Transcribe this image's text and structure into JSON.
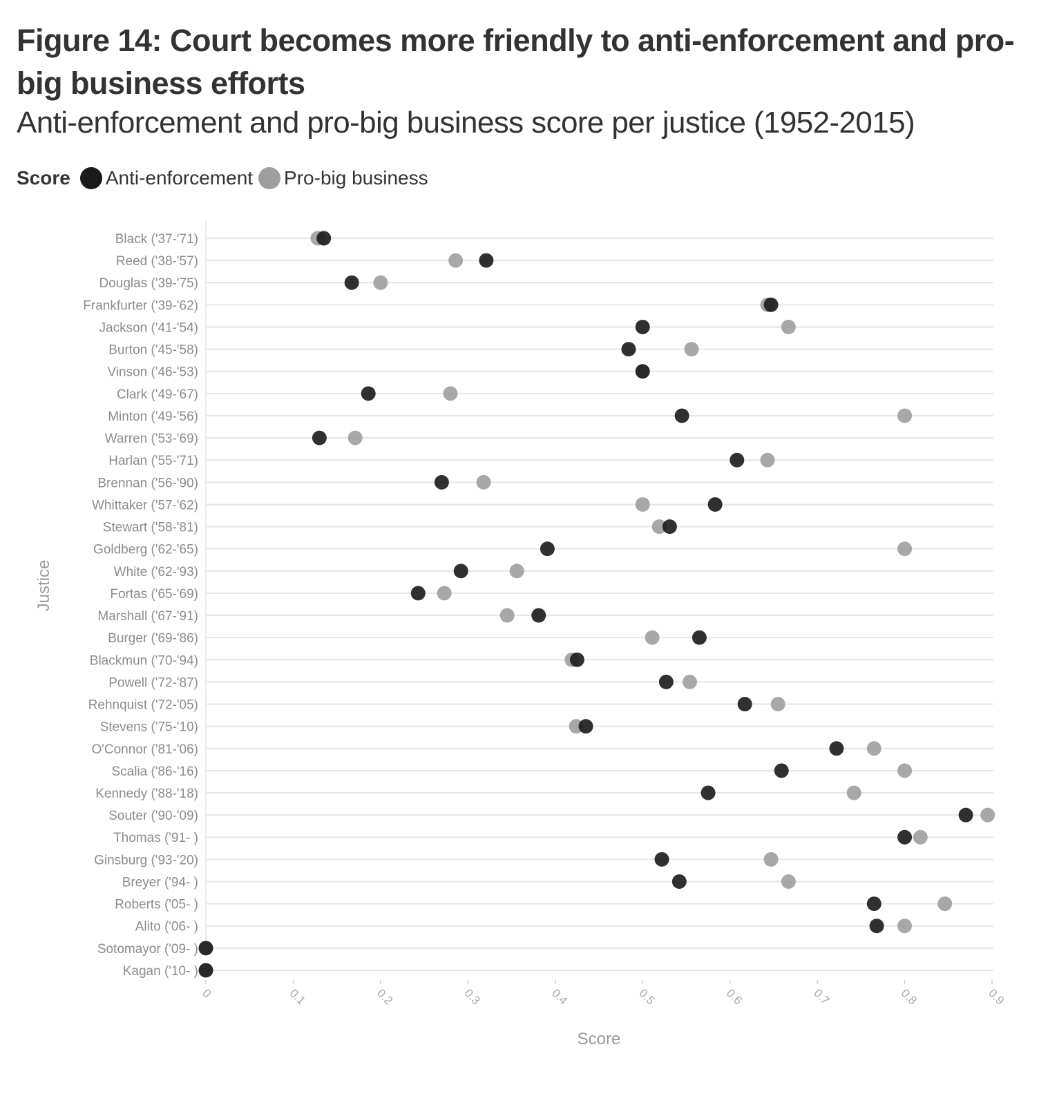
{
  "title": "Figure 14: Court becomes more friendly to anti-enforcement and pro-big business efforts",
  "subtitle": "Anti-enforcement and pro-big business score per justice (1952-2015)",
  "legend": {
    "title": "Score",
    "items": [
      {
        "label": "Anti-enforcement",
        "color": "#1a1a1a"
      },
      {
        "label": "Pro-big business",
        "color": "#9e9e9e"
      }
    ]
  },
  "chart_data": {
    "type": "scatter",
    "title": "Figure 14: Court becomes more friendly to anti-enforcement and pro-big business efforts",
    "subtitle": "Anti-enforcement and pro-big business score per justice (1952-2015)",
    "xlabel": "Score",
    "ylabel": "Justice",
    "xlim": [
      0,
      0.9
    ],
    "xticks": [
      "0",
      "0.1",
      "0.2",
      "0.3",
      "0.4",
      "0.5",
      "0.6",
      "0.7",
      "0.8",
      "0.9"
    ],
    "grid": "horizontal",
    "legend_position": "top-left",
    "categories": [
      "Black ('37-'71)",
      "Reed ('38-'57)",
      "Douglas ('39-'75)",
      "Frankfurter ('39-'62)",
      "Jackson ('41-'54)",
      "Burton ('45-'58)",
      "Vinson ('46-'53)",
      "Clark ('49-'67)",
      "Minton ('49-'56)",
      "Warren ('53-'69)",
      "Harlan ('55-'71)",
      "Brennan ('56-'90)",
      "Whittaker ('57-'62)",
      "Stewart ('58-'81)",
      "Goldberg ('62-'65)",
      "White ('62-'93)",
      "Fortas ('65-'69)",
      "Marshall ('67-'91)",
      "Burger ('69-'86)",
      "Blackmun ('70-'94)",
      "Powell ('72-'87)",
      "Rehnquist ('72-'05)",
      "Stevens ('75-'10)",
      "O'Connor ('81-'06)",
      "Scalia ('86-'16)",
      "Kennedy ('88-'18)",
      "Souter ('90-'09)",
      "Thomas ('91- )",
      "Ginsburg ('93-'20)",
      "Breyer ('94- )",
      "Roberts ('05- )",
      "Alito ('06- )",
      "Sotomayor ('09- )",
      "Kagan ('10- )"
    ],
    "series": [
      {
        "name": "Pro-big business",
        "color": "#9e9e9e",
        "values": [
          0.128,
          0.286,
          0.2,
          0.643,
          0.667,
          0.556,
          0.5,
          0.28,
          0.8,
          0.171,
          0.643,
          0.318,
          0.5,
          0.519,
          0.8,
          0.356,
          0.273,
          0.345,
          0.511,
          0.419,
          0.554,
          0.655,
          0.424,
          0.765,
          0.8,
          0.742,
          0.895,
          0.818,
          0.647,
          0.667,
          0.846,
          0.8,
          0,
          0
        ]
      },
      {
        "name": "Anti-enforcement",
        "color": "#1a1a1a",
        "values": [
          0.135,
          0.321,
          0.167,
          0.647,
          0.5,
          0.484,
          0.5,
          0.186,
          0.545,
          0.13,
          0.608,
          0.27,
          0.583,
          0.531,
          0.391,
          0.292,
          0.243,
          0.381,
          0.565,
          0.425,
          0.527,
          0.617,
          0.435,
          0.722,
          0.659,
          0.575,
          0.87,
          0.8,
          0.522,
          0.542,
          0.765,
          0.768,
          0,
          0
        ]
      }
    ]
  }
}
